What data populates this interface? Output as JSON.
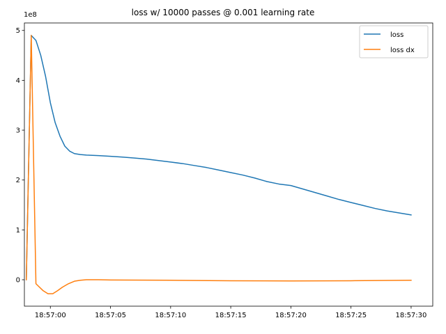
{
  "chart_data": {
    "type": "line",
    "title": "loss w/ 10000 passes @ 0.001 learning rate",
    "xlabel": "",
    "ylabel": "",
    "y_multiplier_label": "1e8",
    "y_multiplier": 100000000,
    "xlim": [
      -2.16,
      31.8
    ],
    "ylim": [
      -0.53,
      5.15
    ],
    "x_ticks": [
      {
        "value": 0,
        "label": "18:57:00"
      },
      {
        "value": 5,
        "label": "18:57:05"
      },
      {
        "value": 10,
        "label": "18:57:10"
      },
      {
        "value": 15,
        "label": "18:57:15"
      },
      {
        "value": 20,
        "label": "18:57:20"
      },
      {
        "value": 25,
        "label": "18:57:25"
      },
      {
        "value": 30,
        "label": "18:57:30"
      }
    ],
    "y_ticks": [
      0,
      1,
      2,
      3,
      4,
      5
    ],
    "grid": false,
    "legend_placement": "top-right",
    "series": [
      {
        "name": "loss",
        "color": "#1f77b4",
        "points": [
          [
            -2.0,
            0.0
          ],
          [
            -1.59,
            4.9
          ],
          [
            -1.2,
            4.8
          ],
          [
            -0.8,
            4.5
          ],
          [
            -0.4,
            4.08
          ],
          [
            0.0,
            3.55
          ],
          [
            0.4,
            3.15
          ],
          [
            0.8,
            2.88
          ],
          [
            1.2,
            2.68
          ],
          [
            1.6,
            2.58
          ],
          [
            2.0,
            2.53
          ],
          [
            2.5,
            2.51
          ],
          [
            3.0,
            2.5
          ],
          [
            4.0,
            2.49
          ],
          [
            5.0,
            2.475
          ],
          [
            6.0,
            2.46
          ],
          [
            7.0,
            2.44
          ],
          [
            8.0,
            2.42
          ],
          [
            9.0,
            2.39
          ],
          [
            10.0,
            2.36
          ],
          [
            11.0,
            2.33
          ],
          [
            12.0,
            2.29
          ],
          [
            13.0,
            2.25
          ],
          [
            14.0,
            2.2
          ],
          [
            15.0,
            2.15
          ],
          [
            16.0,
            2.1
          ],
          [
            17.0,
            2.04
          ],
          [
            18.0,
            1.97
          ],
          [
            19.0,
            1.92
          ],
          [
            20.0,
            1.89
          ],
          [
            21.0,
            1.82
          ],
          [
            22.0,
            1.75
          ],
          [
            23.0,
            1.68
          ],
          [
            24.0,
            1.61
          ],
          [
            25.0,
            1.55
          ],
          [
            26.0,
            1.49
          ],
          [
            27.0,
            1.43
          ],
          [
            28.0,
            1.38
          ],
          [
            29.0,
            1.34
          ],
          [
            30.0,
            1.3
          ]
        ]
      },
      {
        "name": "loss dx",
        "color": "#ff7f0e",
        "points": [
          [
            -2.0,
            0.0
          ],
          [
            -1.59,
            4.9
          ],
          [
            -1.2,
            -0.08
          ],
          [
            -0.6,
            -0.22
          ],
          [
            -0.2,
            -0.28
          ],
          [
            0.2,
            -0.28
          ],
          [
            0.6,
            -0.22
          ],
          [
            1.0,
            -0.15
          ],
          [
            1.5,
            -0.08
          ],
          [
            2.0,
            -0.03
          ],
          [
            2.5,
            -0.01
          ],
          [
            3.0,
            0.0
          ],
          [
            4.0,
            0.0
          ],
          [
            5.0,
            -0.005
          ],
          [
            10.0,
            -0.01
          ],
          [
            15.0,
            -0.02
          ],
          [
            20.0,
            -0.025
          ],
          [
            25.0,
            -0.02
          ],
          [
            30.0,
            -0.01
          ]
        ]
      }
    ]
  }
}
